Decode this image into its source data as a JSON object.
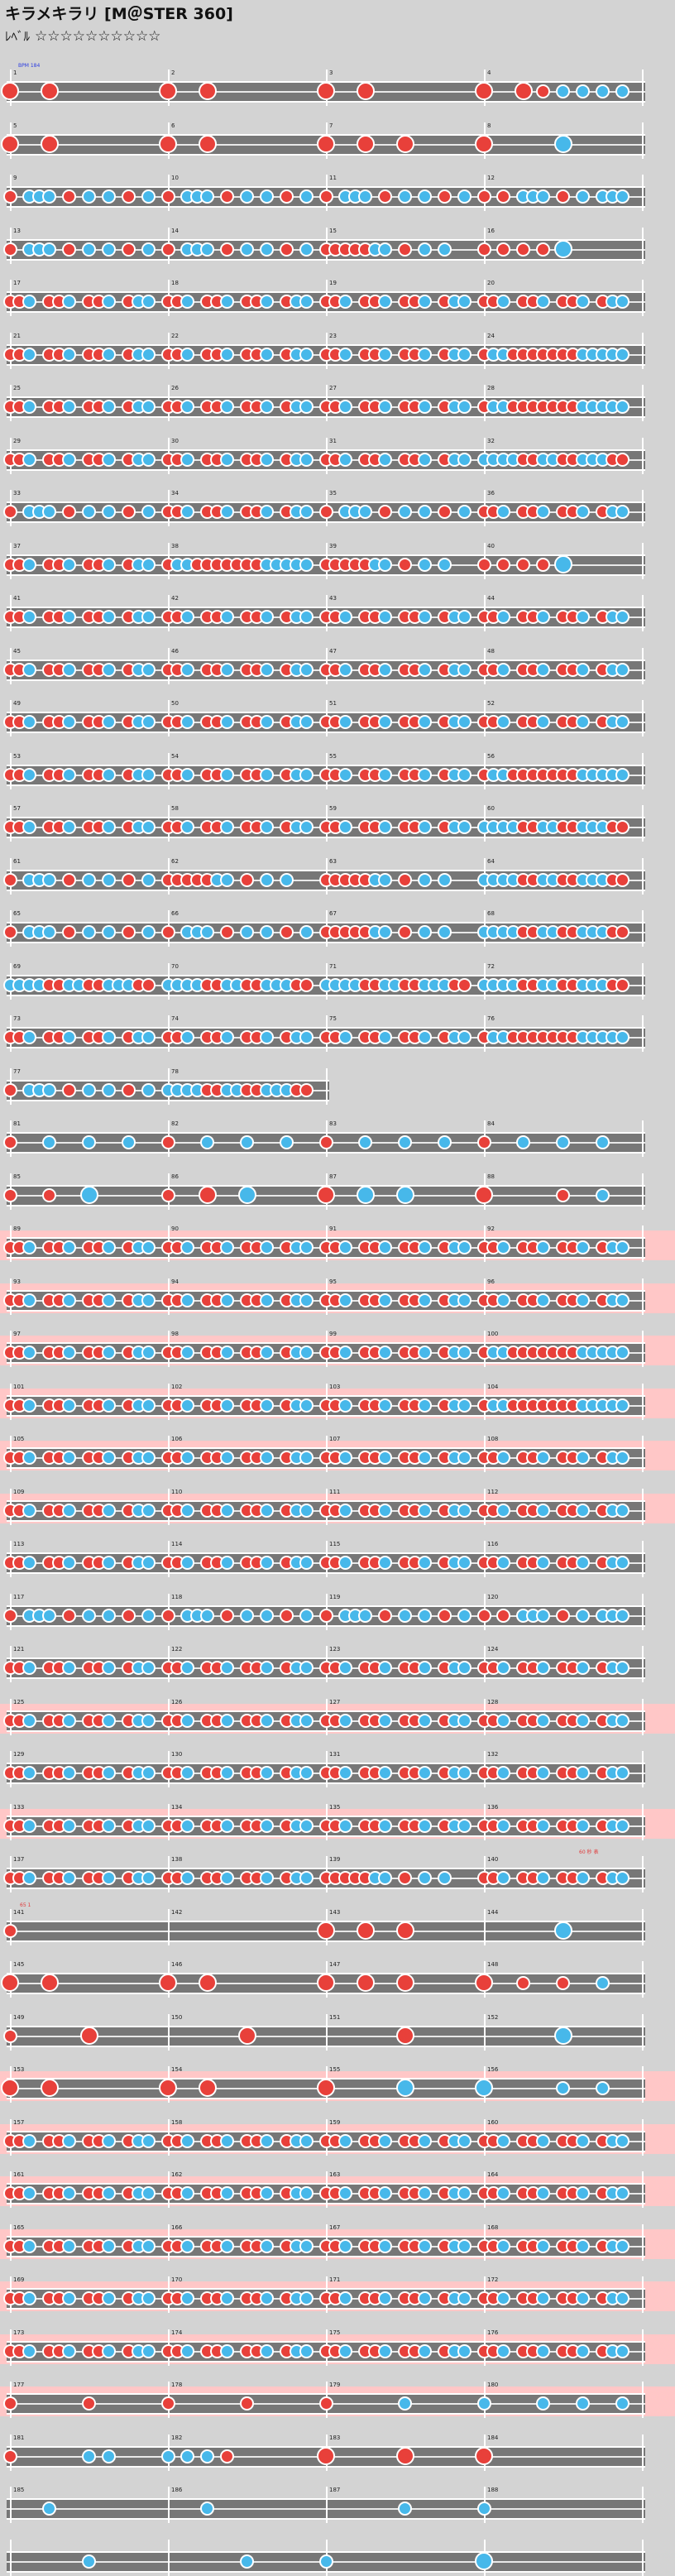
{
  "header": {
    "title": "キラメキラリ [M＠STER 360]",
    "level_label": "ﾚﾍﾞﾙ",
    "stars": "☆☆☆☆☆☆☆☆☆☆"
  },
  "colors": {
    "red_note": "#e8403a",
    "blue_note": "#47b8ea",
    "lane": "#777777",
    "highlight": "#ffc7c7"
  },
  "annotations": {
    "bpm": "BPM 184",
    "ann2": "60 秒 表",
    "ann3": "65 1"
  },
  "pink_rows": [
    22,
    23,
    24,
    25,
    26,
    27,
    31,
    33,
    38,
    39,
    40,
    41,
    42,
    43,
    44
  ],
  "short_rows": {
    "19": 2
  },
  "rows": [
    {
      "p": [
        [
          0,
          "r",
          1
        ],
        [
          8,
          "r",
          1
        ]
      ],
      "p2": [
        [
          0,
          "r",
          1
        ],
        [
          8,
          "r",
          1
        ]
      ],
      "p3": [
        [
          0,
          "r",
          1
        ],
        [
          8,
          "r",
          1
        ]
      ],
      "p4": [
        [
          0,
          "r",
          1
        ],
        [
          8,
          "r",
          1
        ],
        [
          12,
          "r",
          0
        ],
        [
          16,
          "b",
          0
        ],
        [
          20,
          "b",
          0
        ],
        [
          24,
          "b",
          0
        ],
        [
          28,
          "b",
          0
        ]
      ]
    },
    {
      "p": [
        [
          0,
          "r",
          1
        ],
        [
          8,
          "r",
          1
        ]
      ],
      "p2": [
        [
          0,
          "r",
          1
        ],
        [
          8,
          "r",
          1
        ]
      ],
      "p3": [
        [
          0,
          "r",
          1
        ],
        [
          8,
          "r",
          1
        ],
        [
          16,
          "r",
          1
        ]
      ],
      "p4": [
        [
          0,
          "r",
          1
        ],
        [
          16,
          "b",
          1
        ]
      ]
    },
    {
      "p": "mixA",
      "p2": "mixA",
      "p3": "mixA",
      "p4": "mixB"
    },
    {
      "p": "mixA",
      "p2": "mixA",
      "p3": "mixC",
      "p4": [
        [
          0,
          "r",
          0
        ],
        [
          4,
          "r",
          0
        ],
        [
          8,
          "r",
          0
        ],
        [
          12,
          "r",
          0
        ],
        [
          16,
          "b",
          1
        ]
      ]
    },
    {
      "p": "dense",
      "p2": "dense",
      "p3": "dense",
      "p4": "dense"
    },
    {
      "p": "dense",
      "p2": "dense",
      "p3": "dense",
      "p4": "denseR"
    },
    {
      "p": "dense",
      "p2": "dense",
      "p3": "dense",
      "p4": "denseR"
    },
    {
      "p": "dense",
      "p2": "dense",
      "p3": "dense",
      "p4": "denseB"
    },
    {
      "p": "mixA",
      "p2": "dense",
      "p3": "mixA",
      "p4": "dense"
    },
    {
      "p": "dense",
      "p2": "denseR",
      "p3": "mixC",
      "p4": [
        [
          0,
          "r",
          0
        ],
        [
          4,
          "r",
          0
        ],
        [
          8,
          "r",
          0
        ],
        [
          12,
          "r",
          0
        ],
        [
          16,
          "b",
          1
        ]
      ]
    },
    {
      "p": "dense",
      "p2": "dense",
      "p3": "dense",
      "p4": "dense"
    },
    {
      "p": "dense",
      "p2": "dense",
      "p3": "dense",
      "p4": "dense"
    },
    {
      "p": "dense",
      "p2": "dense",
      "p3": "dense",
      "p4": "dense"
    },
    {
      "p": "dense",
      "p2": "dense",
      "p3": "dense",
      "p4": "denseR"
    },
    {
      "p": "dense",
      "p2": "dense",
      "p3": "dense",
      "p4": "denseB"
    },
    {
      "p": "mixA",
      "p2": "mixC",
      "p3": "mixC",
      "p4": "denseB"
    },
    {
      "p": "mixA",
      "p2": "mixA",
      "p3": "mixC",
      "p4": "denseB"
    },
    {
      "p": "denseB",
      "p2": "denseB",
      "p3": "denseB",
      "p4": "denseB"
    },
    {
      "p": "dense",
      "p2": "dense",
      "p3": "dense",
      "p4": "denseR"
    },
    {
      "p": "mixA",
      "p2": "denseB"
    },
    {
      "p": "sparse",
      "p2": "sparse",
      "p3": "sparse",
      "p4": "sparse"
    },
    {
      "p": [
        [
          0,
          "r",
          0
        ],
        [
          8,
          "r",
          0
        ],
        [
          16,
          "b",
          1
        ]
      ],
      "p2": [
        [
          0,
          "r",
          0
        ],
        [
          8,
          "r",
          1
        ],
        [
          16,
          "b",
          1
        ]
      ],
      "p3": [
        [
          0,
          "r",
          1
        ],
        [
          8,
          "b",
          1
        ],
        [
          16,
          "b",
          1
        ]
      ],
      "p4": [
        [
          0,
          "r",
          1
        ],
        [
          16,
          "r",
          0
        ],
        [
          24,
          "b",
          0
        ]
      ]
    },
    {
      "p": "dense",
      "p2": "dense",
      "p3": "dense",
      "p4": "dense"
    },
    {
      "p": "dense",
      "p2": "dense",
      "p3": "dense",
      "p4": "dense"
    },
    {
      "p": "dense",
      "p2": "dense",
      "p3": "dense",
      "p4": "denseR"
    },
    {
      "p": "dense",
      "p2": "dense",
      "p3": "dense",
      "p4": "denseR"
    },
    {
      "p": "dense",
      "p2": "dense",
      "p3": "dense",
      "p4": "dense"
    },
    {
      "p": "dense",
      "p2": "dense",
      "p3": "dense",
      "p4": "dense"
    },
    {
      "p": "dense",
      "p2": "dense",
      "p3": "dense",
      "p4": "dense"
    },
    {
      "p": "mixA",
      "p2": "mixA",
      "p3": "mixA",
      "p4": "mixB"
    },
    {
      "p": "dense",
      "p2": "dense",
      "p3": "dense",
      "p4": "dense"
    },
    {
      "p": "dense",
      "p2": "dense",
      "p3": "dense",
      "p4": "dense"
    },
    {
      "p": "dense",
      "p2": "dense",
      "p3": "dense",
      "p4": "dense"
    },
    {
      "p": "dense",
      "p2": "dense",
      "p3": "dense",
      "p4": "dense"
    },
    {
      "p": "dense",
      "p2": "dense",
      "p3": "mixC",
      "p4": "dense"
    },
    {
      "p": [
        [
          0,
          "r",
          0
        ]
      ],
      "p2": [],
      "p3": [
        [
          0,
          "r",
          1
        ],
        [
          8,
          "r",
          1
        ],
        [
          16,
          "r",
          1
        ]
      ],
      "p4": [
        [
          16,
          "b",
          1
        ]
      ]
    },
    {
      "p": [
        [
          0,
          "r",
          1
        ],
        [
          8,
          "r",
          1
        ]
      ],
      "p2": [
        [
          0,
          "r",
          1
        ],
        [
          8,
          "r",
          1
        ]
      ],
      "p3": [
        [
          0,
          "r",
          1
        ],
        [
          8,
          "r",
          1
        ],
        [
          16,
          "r",
          1
        ]
      ],
      "p4": [
        [
          0,
          "r",
          1
        ],
        [
          8,
          "r",
          0
        ],
        [
          16,
          "r",
          0
        ],
        [
          24,
          "b",
          0
        ]
      ]
    },
    {
      "p": [
        [
          0,
          "r",
          0
        ],
        [
          16,
          "r",
          1
        ]
      ],
      "p2": [
        [
          16,
          "r",
          1
        ]
      ],
      "p3": [
        [
          16,
          "r",
          1
        ]
      ],
      "p4": [
        [
          16,
          "b",
          1
        ]
      ]
    },
    {
      "p": [
        [
          0,
          "r",
          1
        ],
        [
          8,
          "r",
          1
        ]
      ],
      "p2": [
        [
          0,
          "r",
          1
        ],
        [
          8,
          "r",
          1
        ]
      ],
      "p3": [
        [
          0,
          "r",
          1
        ],
        [
          16,
          "b",
          1
        ]
      ],
      "p4": [
        [
          0,
          "b",
          1
        ],
        [
          16,
          "b",
          0
        ],
        [
          24,
          "b",
          0
        ]
      ]
    },
    {
      "p": "dense",
      "p2": "dense",
      "p3": "dense",
      "p4": "dense"
    },
    {
      "p": "dense",
      "p2": "dense",
      "p3": "dense",
      "p4": "dense"
    },
    {
      "p": "dense",
      "p2": "dense",
      "p3": "dense",
      "p4": "dense"
    },
    {
      "p": "dense",
      "p2": "dense",
      "p3": "dense",
      "p4": "dense"
    },
    {
      "p": "dense",
      "p2": "dense",
      "p3": "dense",
      "p4": "dense"
    },
    {
      "p": [
        [
          0,
          "r",
          0
        ],
        [
          16,
          "r",
          0
        ]
      ],
      "p2": [
        [
          0,
          "r",
          0
        ],
        [
          16,
          "r",
          0
        ]
      ],
      "p3": [
        [
          0,
          "r",
          0
        ],
        [
          16,
          "b",
          0
        ]
      ],
      "p4": [
        [
          0,
          "b",
          0
        ],
        [
          12,
          "b",
          0
        ],
        [
          20,
          "b",
          0
        ],
        [
          28,
          "b",
          0
        ]
      ]
    },
    {
      "p": [
        [
          0,
          "r",
          0
        ],
        [
          16,
          "b",
          0
        ],
        [
          20,
          "b",
          0
        ]
      ],
      "p2": [
        [
          0,
          "b",
          0
        ],
        [
          4,
          "b",
          0
        ],
        [
          8,
          "b",
          0
        ],
        [
          12,
          "r",
          0
        ]
      ],
      "p3": [
        [
          0,
          "r",
          1
        ],
        [
          16,
          "r",
          1
        ]
      ],
      "p4": [
        [
          0,
          "r",
          1
        ]
      ]
    },
    {
      "p": [
        [
          8,
          "b",
          0
        ]
      ],
      "p2": [
        [
          8,
          "b",
          0
        ]
      ],
      "p3": [
        [
          16,
          "b",
          0
        ]
      ],
      "p4": [
        [
          0,
          "b",
          0
        ]
      ]
    },
    {
      "p": [
        [
          16,
          "b",
          0
        ]
      ],
      "p2": [
        [
          16,
          "b",
          0
        ]
      ],
      "p3": [
        [
          0,
          "b",
          0
        ]
      ],
      "p4": [
        [
          0,
          "b",
          1
        ]
      ]
    }
  ],
  "measure_numbers": [
    "1",
    "2",
    "3",
    "4",
    "5",
    "6",
    "7",
    "8",
    "9",
    "10",
    "11",
    "12",
    "13",
    "14",
    "15",
    "16",
    "17",
    "18",
    "19",
    "20",
    "21",
    "22",
    "23",
    "24",
    "25",
    "26",
    "27",
    "28",
    "29",
    "30",
    "31",
    "32",
    "33",
    "34",
    "35",
    "36",
    "37",
    "38",
    "39",
    "40",
    "41",
    "42",
    "43",
    "44",
    "45",
    "46",
    "47",
    "48",
    "49",
    "50",
    "51",
    "52",
    "53",
    "54",
    "55",
    "56",
    "57",
    "58",
    "59",
    "60",
    "61",
    "62",
    "63",
    "64",
    "65",
    "66",
    "67",
    "68",
    "69",
    "70",
    "71",
    "72",
    "73",
    "74",
    "75",
    "76",
    "77",
    "78",
    "79",
    "80",
    "81",
    "82",
    "83",
    "84",
    "85",
    "86",
    "87",
    "88",
    "89",
    "90",
    "91",
    "92",
    "93",
    "94",
    "95",
    "96",
    "97",
    "98",
    "99",
    "100",
    "101",
    "102",
    "103",
    "104",
    "105",
    "106",
    "107",
    "108",
    "109",
    "110",
    "111",
    "112",
    "113",
    "114",
    "115",
    "116",
    "117",
    "118",
    "119",
    "120",
    "121",
    "122",
    "123",
    "124",
    "125",
    "126",
    "127",
    "128",
    "129",
    "130",
    "131",
    "132",
    "133",
    "134",
    "135",
    "136",
    "137",
    "138",
    "139",
    "140",
    "141",
    "142",
    "143",
    "144",
    "145",
    "146",
    "147",
    "148",
    "149",
    "150",
    "151",
    "152",
    "153",
    "154",
    "155",
    "156",
    "157",
    "158",
    "159",
    "160",
    "161",
    "162",
    "163",
    "164",
    "165",
    "166",
    "167",
    "168",
    "169",
    "170",
    "171",
    "172",
    "173",
    "174",
    "175",
    "176",
    "177",
    "178",
    "179",
    "180",
    "181",
    "182",
    "183",
    "184",
    "185",
    "186",
    "187",
    "188"
  ]
}
